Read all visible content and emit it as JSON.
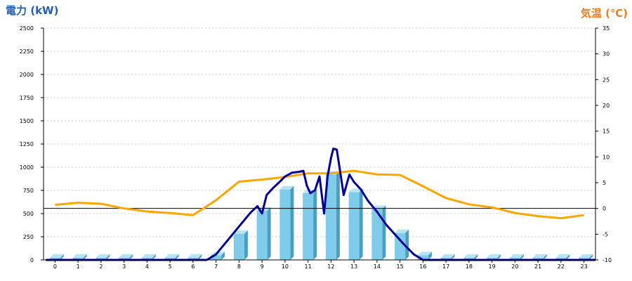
{
  "chart_data": {
    "type": "bar",
    "left_axis_title": "電力 (kW)",
    "right_axis_title": "気温 (℃)",
    "categories": [
      "0",
      "1",
      "2",
      "3",
      "4",
      "5",
      "6",
      "7",
      "8",
      "9",
      "10",
      "11",
      "12",
      "13",
      "14",
      "15",
      "16",
      "17",
      "18",
      "19",
      "20",
      "21",
      "22",
      "23"
    ],
    "y_left": {
      "lim": [
        0,
        2500
      ],
      "ticks": [
        0,
        250,
        500,
        750,
        1000,
        1250,
        1500,
        1750,
        2000,
        2250,
        2500
      ]
    },
    "y_right": {
      "lim": [
        -10,
        35
      ],
      "ticks": [
        -10,
        -5,
        0,
        5,
        10,
        15,
        20,
        25,
        30,
        35
      ]
    },
    "grid": true,
    "bars": {
      "axis": "left",
      "color": "#7ecbea",
      "values": [
        0,
        0,
        0,
        0,
        0,
        0,
        0,
        50,
        280,
        530,
        760,
        720,
        920,
        730,
        550,
        290,
        50,
        0,
        0,
        0,
        0,
        0,
        0,
        0
      ]
    },
    "power_line": {
      "axis": "left",
      "color": "#000099",
      "points": [
        [
          -0.4,
          0
        ],
        [
          6.6,
          0
        ],
        [
          7.0,
          60
        ],
        [
          7.5,
          210
        ],
        [
          8.0,
          360
        ],
        [
          8.5,
          510
        ],
        [
          8.8,
          580
        ],
        [
          9.0,
          500
        ],
        [
          9.2,
          700
        ],
        [
          9.5,
          780
        ],
        [
          9.8,
          850
        ],
        [
          10.0,
          900
        ],
        [
          10.3,
          940
        ],
        [
          10.6,
          950
        ],
        [
          10.8,
          960
        ],
        [
          10.95,
          800
        ],
        [
          11.1,
          720
        ],
        [
          11.3,
          750
        ],
        [
          11.5,
          900
        ],
        [
          11.7,
          500
        ],
        [
          11.85,
          900
        ],
        [
          12.0,
          1100
        ],
        [
          12.1,
          1200
        ],
        [
          12.25,
          1190
        ],
        [
          12.4,
          950
        ],
        [
          12.55,
          700
        ],
        [
          12.8,
          920
        ],
        [
          13.0,
          840
        ],
        [
          13.3,
          760
        ],
        [
          13.6,
          640
        ],
        [
          14.0,
          520
        ],
        [
          14.4,
          380
        ],
        [
          14.8,
          270
        ],
        [
          15.2,
          160
        ],
        [
          15.6,
          60
        ],
        [
          16.0,
          0
        ],
        [
          23.5,
          0
        ]
      ]
    },
    "temperature_line": {
      "axis": "right",
      "color": "#ffa500",
      "points": [
        [
          0,
          0.7
        ],
        [
          1,
          1.1
        ],
        [
          2,
          0.9
        ],
        [
          3,
          0
        ],
        [
          4,
          -0.6
        ],
        [
          5,
          -0.9
        ],
        [
          6,
          -1.3
        ],
        [
          7,
          1.6
        ],
        [
          8,
          5.2
        ],
        [
          9,
          5.6
        ],
        [
          10,
          6.1
        ],
        [
          11,
          6.8
        ],
        [
          12,
          6.8
        ],
        [
          13,
          7.3
        ],
        [
          14,
          6.6
        ],
        [
          15,
          6.5
        ],
        [
          16,
          4.3
        ],
        [
          17,
          2.0
        ],
        [
          18,
          0.8
        ],
        [
          19,
          0.2
        ],
        [
          20,
          -0.9
        ],
        [
          21,
          -1.5
        ],
        [
          22,
          -1.9
        ],
        [
          23,
          -1.3
        ]
      ]
    }
  }
}
